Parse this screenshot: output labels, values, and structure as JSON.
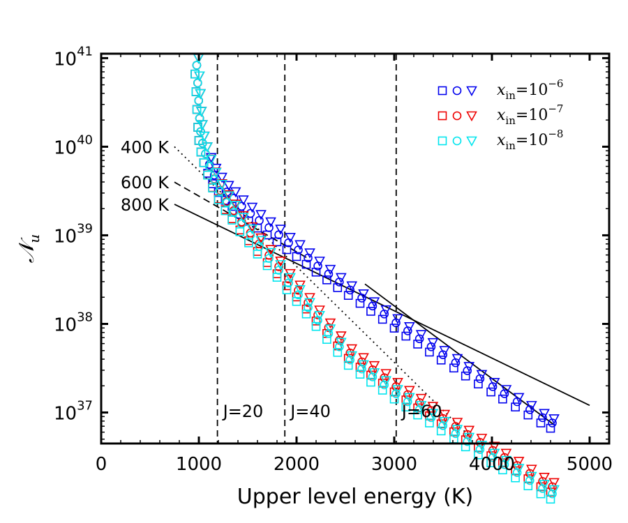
{
  "chart_data": {
    "type": "scatter",
    "xlabel": "Upper level energy (K)",
    "ylabel_symbol": "𝒩",
    "ylabel_subscript": "u",
    "xlim": [
      0,
      5200
    ],
    "ylim_log10": [
      36.65,
      41.05
    ],
    "x_ticks": [
      0,
      1000,
      2000,
      3000,
      4000,
      5000
    ],
    "y_ticks": [
      {
        "base": "10",
        "exp": "37",
        "log10": 37
      },
      {
        "base": "10",
        "exp": "38",
        "log10": 38
      },
      {
        "base": "10",
        "exp": "39",
        "log10": 39
      },
      {
        "base": "10",
        "exp": "40",
        "log10": 40
      },
      {
        "base": "10",
        "exp": "41",
        "log10": 41
      }
    ],
    "vlines": [
      {
        "x": 1190,
        "label": "J=20"
      },
      {
        "x": 1880,
        "label": "J=40"
      },
      {
        "x": 3020,
        "label": "J=60"
      }
    ],
    "fits": [
      {
        "label": "400 K",
        "style": "dotted",
        "x": [
          750,
          3800
        ],
        "log10_y": [
          40.0,
          36.7
        ]
      },
      {
        "label": "600 K",
        "style": "dashed",
        "x": [
          750,
          2100
        ],
        "log10_y": [
          39.6,
          38.75
        ]
      },
      {
        "label": "800 K",
        "style": "solid",
        "x": [
          750,
          5000
        ],
        "log10_y": [
          39.35,
          37.08
        ]
      },
      {
        "label": "",
        "style": "solid",
        "x": [
          2700,
          4650
        ],
        "log10_y": [
          38.45,
          36.85
        ]
      }
    ],
    "legend": [
      {
        "prefix": "x",
        "sub": "in",
        "value": "=10",
        "exp": "−6",
        "color": "#0000ee"
      },
      {
        "prefix": "x",
        "sub": "in",
        "value": "=10",
        "exp": "−7",
        "color": "#ee0000"
      },
      {
        "prefix": "x",
        "sub": "in",
        "value": "=10",
        "exp": "−8",
        "color": "#00e5ee"
      }
    ],
    "series": [
      {
        "name": "x_in=10^-6",
        "color": "#0000ee",
        "high_offset_log10": 0.0,
        "end_x": 4600
      },
      {
        "name": "x_in=10^-7",
        "color": "#ee0000",
        "high_offset_log10": -0.72,
        "end_x": 4620
      },
      {
        "name": "x_in=10^-8",
        "color": "#00e5ee",
        "high_offset_log10": -0.8,
        "end_x": 4620
      }
    ],
    "markers": [
      "square",
      "circle",
      "triangle-down"
    ],
    "points_base": [
      [
        960,
        40.9
      ],
      [
        970,
        40.7
      ],
      [
        980,
        40.5
      ],
      [
        990,
        40.3
      ],
      [
        1000,
        40.15
      ],
      [
        1020,
        40.02
      ],
      [
        1050,
        39.9
      ],
      [
        1090,
        39.78
      ],
      [
        1140,
        39.66
      ],
      [
        1200,
        39.56
      ],
      [
        1270,
        39.47
      ],
      [
        1340,
        39.4
      ],
      [
        1420,
        39.31
      ],
      [
        1510,
        39.23
      ],
      [
        1600,
        39.15
      ],
      [
        1700,
        39.07
      ],
      [
        1800,
        38.99
      ],
      [
        1900,
        38.9
      ],
      [
        2000,
        38.82
      ],
      [
        2100,
        38.73
      ],
      [
        2200,
        38.64
      ],
      [
        2310,
        38.55
      ],
      [
        2420,
        38.46
      ],
      [
        2530,
        38.37
      ],
      [
        2650,
        38.28
      ],
      [
        2760,
        38.19
      ],
      [
        2880,
        38.1
      ],
      [
        3000,
        38.0
      ],
      [
        3120,
        37.91
      ],
      [
        3240,
        37.82
      ],
      [
        3360,
        37.73
      ],
      [
        3480,
        37.64
      ],
      [
        3610,
        37.55
      ],
      [
        3730,
        37.46
      ],
      [
        3860,
        37.37
      ],
      [
        3990,
        37.28
      ],
      [
        4110,
        37.2
      ],
      [
        4240,
        37.11
      ],
      [
        4370,
        37.02
      ],
      [
        4500,
        36.93
      ],
      [
        4600,
        36.87
      ]
    ]
  }
}
